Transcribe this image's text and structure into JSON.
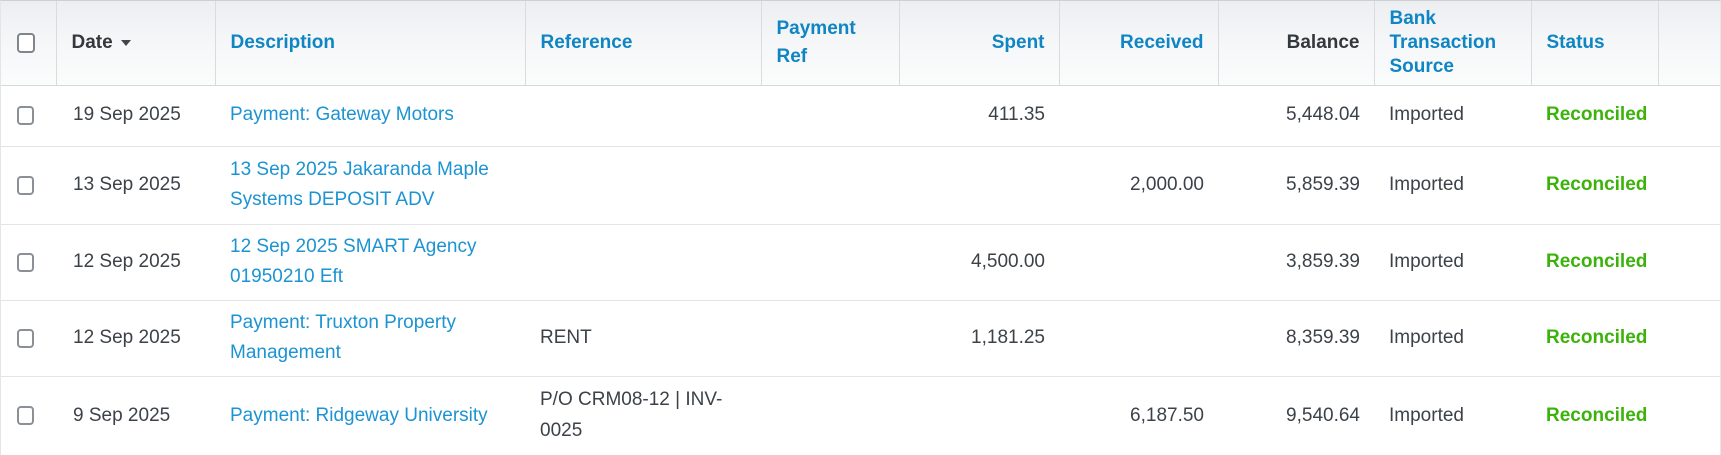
{
  "table": {
    "columns": {
      "date": "Date",
      "description": "Description",
      "reference": "Reference",
      "payment_ref": "Payment Ref",
      "spent": "Spent",
      "received": "Received",
      "balance": "Balance",
      "source": "Bank Transaction Source",
      "status": "Status"
    },
    "sort": {
      "column": "Date",
      "direction": "desc"
    },
    "rows": [
      {
        "date": "19 Sep 2025",
        "description": "Payment: Gateway Motors",
        "reference": "",
        "payment_ref": "",
        "spent": "411.35",
        "received": "",
        "balance": "5,448.04",
        "source": "Imported",
        "status": "Reconciled"
      },
      {
        "date": "13 Sep 2025",
        "description": "13 Sep 2025 Jakaranda Maple Systems DEPOSIT ADV",
        "reference": "",
        "payment_ref": "",
        "spent": "",
        "received": "2,000.00",
        "balance": "5,859.39",
        "source": "Imported",
        "status": "Reconciled"
      },
      {
        "date": "12 Sep 2025",
        "description": "12 Sep 2025 SMART Agency 01950210 Eft",
        "reference": "",
        "payment_ref": "",
        "spent": "4,500.00",
        "received": "",
        "balance": "3,859.39",
        "source": "Imported",
        "status": "Reconciled"
      },
      {
        "date": "12 Sep 2025",
        "description": "Payment: Truxton Property Management",
        "reference": "RENT",
        "payment_ref": "",
        "spent": "1,181.25",
        "received": "",
        "balance": "8,359.39",
        "source": "Imported",
        "status": "Reconciled"
      },
      {
        "date": "9 Sep 2025",
        "description": "Payment: Ridgeway University",
        "reference": "P/O CRM08-12 | INV-0025",
        "payment_ref": "",
        "spent": "",
        "received": "6,187.50",
        "balance": "9,540.64",
        "source": "Imported",
        "status": "Reconciled"
      }
    ],
    "icons": {
      "date_sort": "sort-desc-icon"
    },
    "colors": {
      "header_blue": "#0f85c3",
      "link_blue": "#1c93d2",
      "status_green": "#3cb30b",
      "text_dark": "#3c4248"
    }
  }
}
